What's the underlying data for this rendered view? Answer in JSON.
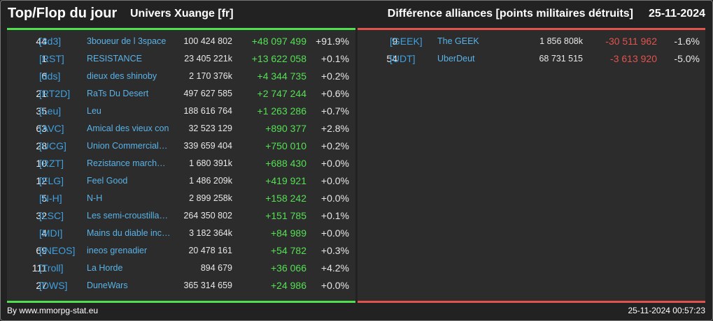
{
  "header": {
    "title": "Top/Flop du jour",
    "universe": "Univers Xuange [fr]",
    "metric": "Différence alliances [points militaires détruits]",
    "date": "25-11-2024"
  },
  "colors": {
    "background": "#222222",
    "panel": "#2c2c2c",
    "top_bar": "#4ee04e",
    "flop_bar": "#e0534e",
    "positive": "#55e055",
    "negative": "#e0534e",
    "tag": "#3fa0e0",
    "name": "#59b3e8"
  },
  "top": [
    {
      "rank": "44",
      "tag": "[3d3]",
      "name": "3boueur de l 3space",
      "points": "100 424 802",
      "diff": "+48 097 499",
      "pct": "+91.9%"
    },
    {
      "rank": "1",
      "tag": "[RST]",
      "name": "RESISTANCE",
      "points": "23 405 221k",
      "diff": "+13 622 058",
      "pct": "+0.1%"
    },
    {
      "rank": "6",
      "tag": "[dds]",
      "name": "dieux des shinoby",
      "points": "2 170 376k",
      "diff": "+4 344 735",
      "pct": "+0.2%"
    },
    {
      "rank": "21",
      "tag": "[RT2D]",
      "name": "RaTs Du Desert",
      "points": "497 627 585",
      "diff": "+2 747 244",
      "pct": "+0.6%"
    },
    {
      "rank": "35",
      "tag": "[Leu]",
      "name": "Leu",
      "points": "188 616 764",
      "diff": "+1 263 286",
      "pct": "+0.7%"
    },
    {
      "rank": "63",
      "tag": "[AVC]",
      "name": "Amical des vieux con",
      "points": "32 523 129",
      "diff": "+890 377",
      "pct": "+2.8%"
    },
    {
      "rank": "28",
      "tag": "[UCG]",
      "name": "Union Commerciale…",
      "points": "339 659 404",
      "diff": "+750 010",
      "pct": "+0.2%"
    },
    {
      "rank": "10",
      "tag": "[RZT]",
      "name": "Rezistance march…",
      "points": "1 680 391k",
      "diff": "+688 430",
      "pct": "+0.0%"
    },
    {
      "rank": "12",
      "tag": "[FLG]",
      "name": "Feel Good",
      "points": "1 486 209k",
      "diff": "+419 921",
      "pct": "+0.0%"
    },
    {
      "rank": "5",
      "tag": "[N-H]",
      "name": "N-H",
      "points": "2 899 258k",
      "diff": "+158 242",
      "pct": "+0.0%"
    },
    {
      "rank": "32",
      "tag": "[LSC]",
      "name": "Les semi-croustilla…",
      "points": "264 350 802",
      "diff": "+151 785",
      "pct": "+0.1%"
    },
    {
      "rank": "4",
      "tag": "[MDI]",
      "name": "Mains du diable inco…",
      "points": "3 182 364k",
      "diff": "+84 989",
      "pct": "+0.0%"
    },
    {
      "rank": "69",
      "tag": "[INEOS]",
      "name": "ineos grenadier",
      "points": "20 478 161",
      "diff": "+54 782",
      "pct": "+0.3%"
    },
    {
      "rank": "111",
      "tag": "[Troll]",
      "name": "La Horde",
      "points": "894 679",
      "diff": "+36 066",
      "pct": "+4.2%"
    },
    {
      "rank": "27",
      "tag": "[DWS]",
      "name": "DuneWars",
      "points": "365 314 659",
      "diff": "+24 986",
      "pct": "+0.0%"
    }
  ],
  "flop": [
    {
      "rank": "9",
      "tag": "[GEEK]",
      "name": "The GEEK",
      "points": "1 856 808k",
      "diff": "-30 511 962",
      "pct": "-1.6%"
    },
    {
      "rank": "54",
      "tag": "[UDT]",
      "name": "UberDeut",
      "points": "68 731 515",
      "diff": "-3 613 920",
      "pct": "-5.0%"
    }
  ],
  "footer": {
    "source": "By www.mmorpg-stat.eu",
    "timestamp": "25-11-2024 00:57:23"
  }
}
